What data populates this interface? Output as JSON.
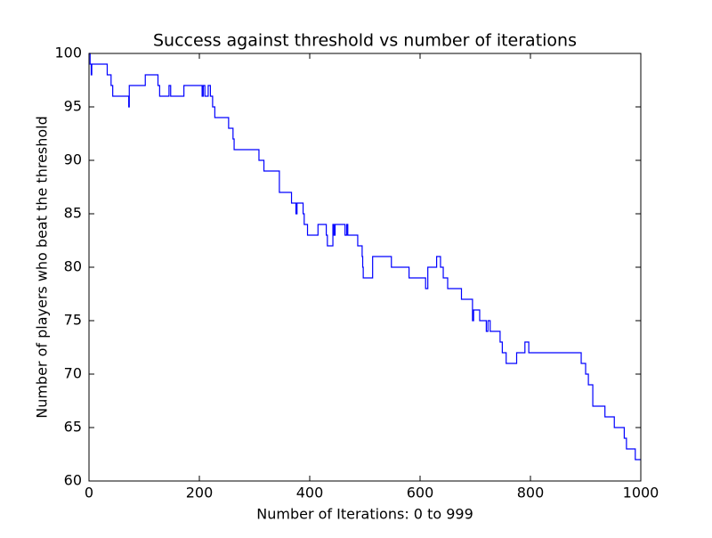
{
  "chart_data": {
    "type": "line",
    "title": "Success against threshold vs number of iterations",
    "x_label": "Number of Iterations: 0 to 999",
    "y_label": "Number of players who beat the threshold",
    "xlim": [
      0,
      1000
    ],
    "ylim": [
      60,
      100
    ],
    "xticks": [
      0,
      200,
      400,
      600,
      800,
      1000
    ],
    "yticks": [
      60,
      65,
      70,
      75,
      80,
      85,
      90,
      95,
      100
    ],
    "series": [
      {
        "color": "#0000ff",
        "x": [
          0,
          2,
          2,
          4,
          4,
          5,
          5,
          33,
          33,
          40,
          40,
          43,
          43,
          72,
          72,
          73,
          73,
          102,
          102,
          125,
          125,
          128,
          128,
          145,
          145,
          148,
          148,
          172,
          172,
          205,
          205,
          207,
          207,
          210,
          210,
          216,
          216,
          220,
          220,
          224,
          224,
          228,
          228,
          253,
          253,
          261,
          261,
          263,
          263,
          308,
          308,
          317,
          317,
          345,
          345,
          367,
          367,
          375,
          375,
          377,
          377,
          388,
          388,
          390,
          390,
          396,
          396,
          415,
          415,
          430,
          430,
          432,
          432,
          442,
          442,
          444,
          444,
          446,
          446,
          464,
          464,
          467,
          467,
          469,
          469,
          487,
          487,
          495,
          495,
          496,
          496,
          497,
          497,
          514,
          514,
          548,
          548,
          580,
          580,
          610,
          610,
          614,
          614,
          630,
          630,
          637,
          637,
          642,
          642,
          650,
          650,
          675,
          675,
          695,
          695,
          697,
          697,
          708,
          708,
          720,
          720,
          723,
          723,
          727,
          727,
          745,
          745,
          749,
          749,
          756,
          756,
          775,
          775,
          790,
          790,
          797,
          797,
          892,
          892,
          900,
          900,
          905,
          905,
          913,
          913,
          935,
          935,
          952,
          952,
          970,
          970,
          974,
          974,
          990,
          990,
          1000
        ],
        "values": [
          100,
          100,
          99,
          99,
          98,
          98,
          99,
          99,
          98,
          98,
          97,
          97,
          96,
          96,
          95,
          95,
          97,
          97,
          98,
          98,
          97,
          97,
          96,
          96,
          97,
          97,
          96,
          96,
          97,
          97,
          96,
          96,
          97,
          97,
          96,
          96,
          97,
          97,
          96,
          96,
          95,
          95,
          94,
          94,
          93,
          93,
          92,
          92,
          91,
          91,
          90,
          90,
          89,
          89,
          87,
          87,
          86,
          86,
          85,
          85,
          86,
          86,
          85,
          85,
          84,
          84,
          83,
          83,
          84,
          84,
          83,
          83,
          82,
          82,
          84,
          84,
          83,
          83,
          84,
          84,
          83,
          83,
          84,
          84,
          83,
          83,
          82,
          82,
          81,
          81,
          80,
          80,
          79,
          79,
          81,
          81,
          80,
          80,
          79,
          79,
          78,
          78,
          80,
          80,
          81,
          81,
          80,
          80,
          79,
          79,
          78,
          78,
          77,
          77,
          75,
          75,
          76,
          76,
          75,
          75,
          74,
          74,
          75,
          75,
          74,
          74,
          73,
          73,
          72,
          72,
          71,
          71,
          72,
          72,
          73,
          73,
          72,
          72,
          71,
          71,
          70,
          70,
          69,
          69,
          67,
          67,
          66,
          66,
          65,
          65,
          64,
          64,
          63,
          63,
          62,
          62
        ]
      }
    ]
  }
}
